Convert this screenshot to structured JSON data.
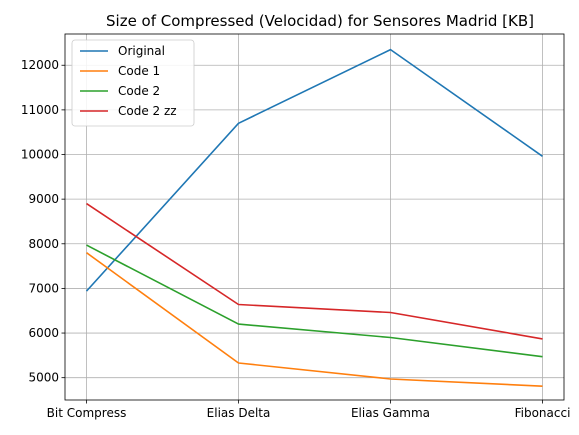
{
  "chart_data": {
    "type": "line",
    "title": "Size of Compressed (Velocidad) for Sensores Madrid [KB]",
    "xlabel": "",
    "ylabel": "",
    "categories": [
      "Bit Compress",
      "Elias Delta",
      "Elias Gamma",
      "Fibonacci"
    ],
    "ylim": [
      4500,
      12700
    ],
    "yticks": [
      5000,
      6000,
      7000,
      8000,
      9000,
      10000,
      11000,
      12000
    ],
    "grid": true,
    "legend_position": "top-left",
    "series": [
      {
        "name": "Original",
        "color": "#1f77b4",
        "values": [
          6940,
          10700,
          12350,
          9960
        ]
      },
      {
        "name": "Code 1",
        "color": "#ff7f0e",
        "values": [
          7800,
          5330,
          4970,
          4810
        ]
      },
      {
        "name": "Code 2",
        "color": "#2ca02c",
        "values": [
          7970,
          6200,
          5900,
          5470
        ]
      },
      {
        "name": "Code 2 zz",
        "color": "#d62728",
        "values": [
          8900,
          6640,
          6460,
          5870
        ]
      }
    ]
  }
}
